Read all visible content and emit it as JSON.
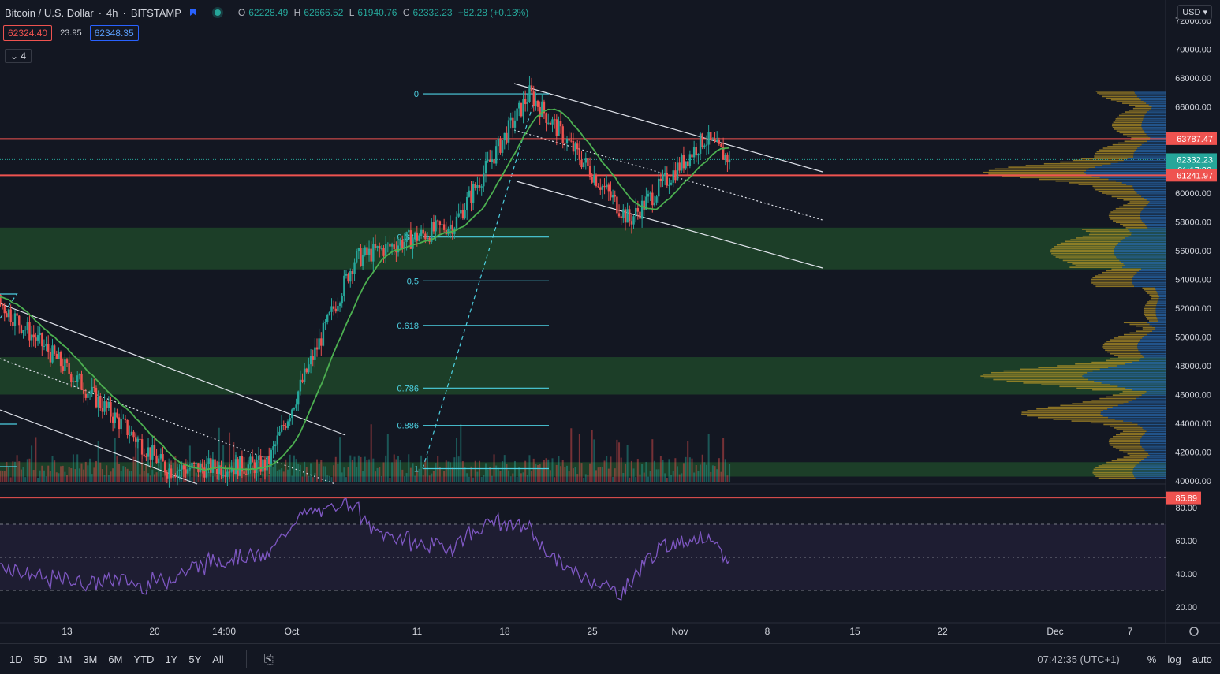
{
  "header": {
    "symbol": "Bitcoin / U.S. Dollar",
    "interval": "4h",
    "exchange": "BITSTAMP",
    "o_label": "O",
    "o": "62228.49",
    "h_label": "H",
    "h": "62666.52",
    "l_label": "L",
    "l": "61940.76",
    "c_label": "C",
    "c": "62332.23",
    "change": "+82.28 (+0.13%)"
  },
  "quote": {
    "bid": "62324.40",
    "spread": "23.95",
    "ask": "62348.35"
  },
  "indicators_toggle": "4",
  "currency": "USD",
  "bottom": {
    "ranges": [
      "1D",
      "5D",
      "1M",
      "3M",
      "6M",
      "YTD",
      "1Y",
      "5Y",
      "All"
    ],
    "clock": "07:42:35 (UTC+1)",
    "percent": "%",
    "log": "log",
    "auto": "auto"
  },
  "colors": {
    "up": "#26a69a",
    "down": "#ef5350",
    "ma": "#4caf50",
    "rsi": "#7e57c2",
    "fib": "#4dd0e1",
    "zone": "#2e7d32",
    "bg": "#131722"
  },
  "chart_data": {
    "type": "candlestick",
    "price_axis": {
      "ylim": [
        40000,
        72000
      ],
      "ticks": [
        "70000.00",
        "68000.00",
        "66000.00",
        "64000.00",
        "62000.00",
        "60000.00",
        "58000.00",
        "56000.00",
        "54000.00",
        "52000.00",
        "50000.00",
        "48000.00",
        "46000.00",
        "44000.00",
        "42000.00",
        "40000.00"
      ],
      "tick_values": [
        70000,
        68000,
        66000,
        64000,
        62000,
        60000,
        58000,
        56000,
        54000,
        52000,
        50000,
        48000,
        46000,
        44000,
        42000,
        40000
      ],
      "top_partial": "72000.00"
    },
    "rsi_axis": {
      "ylim": [
        15,
        90
      ],
      "ticks": [
        "80.00",
        "60.00",
        "40.00",
        "20.00"
      ],
      "tick_values": [
        80,
        60,
        40,
        20
      ],
      "bands": [
        70,
        50,
        30
      ]
    },
    "time_axis": {
      "labels": [
        "13",
        "20",
        "14:00",
        "Oct",
        "11",
        "18",
        "25",
        "Nov",
        "8",
        "15",
        "22",
        "Dec",
        "7"
      ]
    },
    "price_labels": [
      {
        "value": 63787.47,
        "text": "63787.47",
        "kind": "line-red"
      },
      {
        "value": 62332.23,
        "text": "62332.23",
        "countdown": "01:17:26",
        "kind": "last"
      },
      {
        "value": 61241.97,
        "text": "61241.97",
        "kind": "line-red"
      }
    ],
    "rsi_label": {
      "value": 85.89,
      "text": "85.89"
    },
    "fib_levels": [
      {
        "ratio": "0",
        "price": 66900
      },
      {
        "ratio": "0.382",
        "price": 56950
      },
      {
        "ratio": "0.5",
        "price": 53900
      },
      {
        "ratio": "0.618",
        "price": 50800
      },
      {
        "ratio": "0.786",
        "price": 46450
      },
      {
        "ratio": "0.886",
        "price": 43850
      },
      {
        "ratio": "1",
        "price": 40850
      }
    ],
    "zones": [
      {
        "from": 54700,
        "to": 57600
      },
      {
        "from": 46000,
        "to": 48600
      },
      {
        "from": 40300,
        "to": 41300
      }
    ],
    "key_points": [
      {
        "time": "Sep 07",
        "price": 52900
      },
      {
        "time": "Sep 21",
        "price": 40800
      },
      {
        "time": "Sep 29",
        "price": 41100
      },
      {
        "time": "Oct 06",
        "price": 55400
      },
      {
        "time": "Oct 14",
        "price": 57900
      },
      {
        "time": "Oct 20",
        "price": 66900
      },
      {
        "time": "Oct 28",
        "price": 58100
      },
      {
        "time": "Nov 03",
        "price": 63800
      },
      {
        "time": "Nov 05",
        "price": 62332
      }
    ]
  }
}
